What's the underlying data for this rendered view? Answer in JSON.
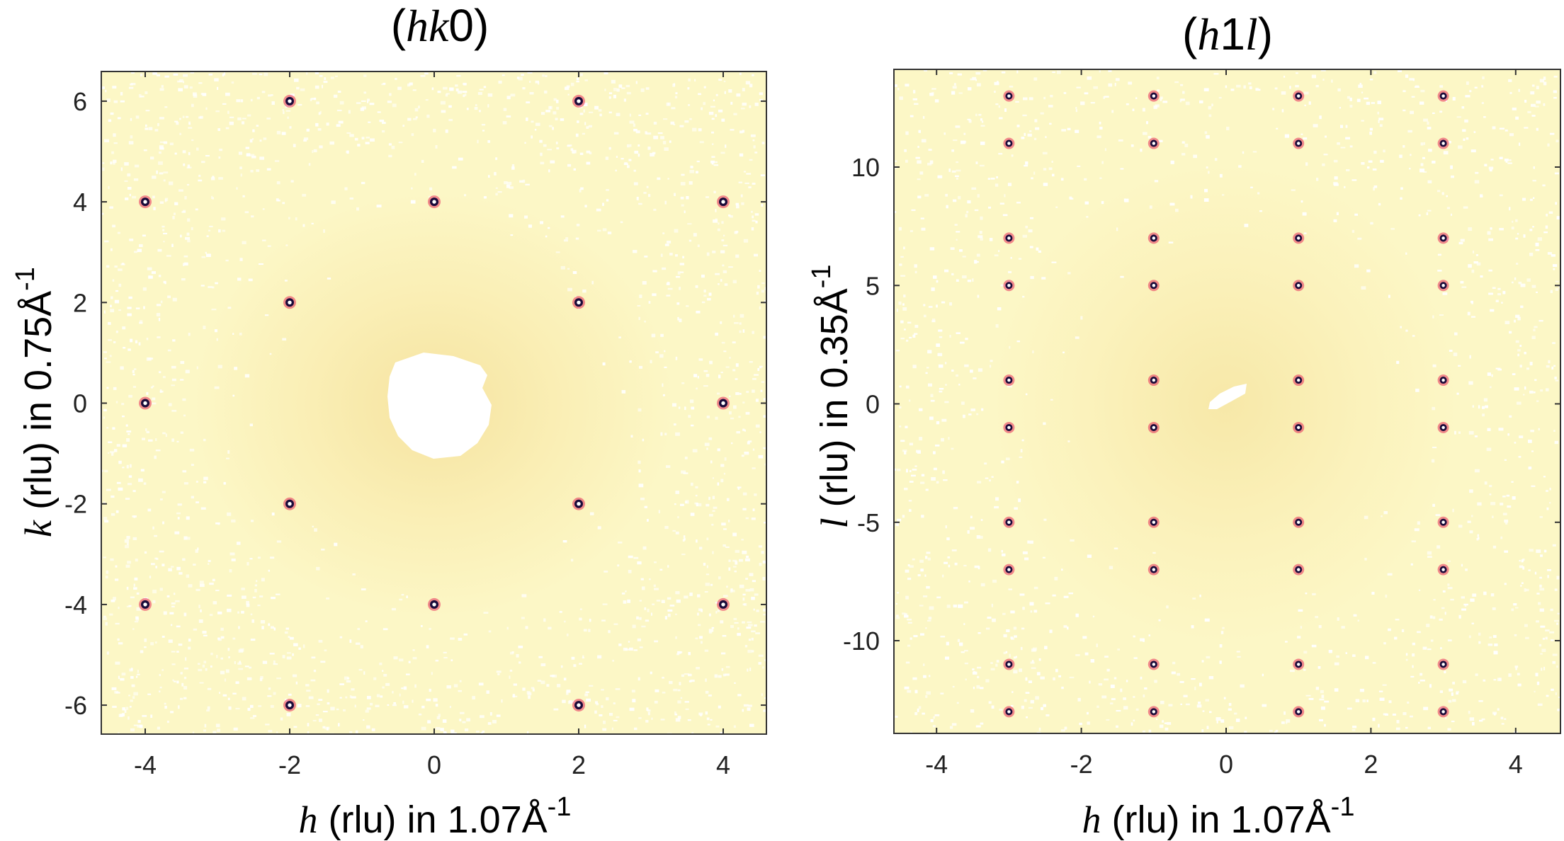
{
  "chart_data": [
    {
      "type": "scatter",
      "title_prefix": "(",
      "title_italic": "hk",
      "title_suffix": "0)",
      "xlabel_var": "h",
      "xlabel_rest": " (rlu) in 1.07Å",
      "xlabel_sup": "-1",
      "ylabel_var": "k",
      "ylabel_rest": " (rlu) in 0.75Å",
      "ylabel_sup": "-1",
      "xlim": [
        -4.6,
        4.6
      ],
      "ylim": [
        -6.6,
        6.6
      ],
      "xticks": [
        "-4",
        "-2",
        "0",
        "2",
        "4"
      ],
      "yticks": [
        "6",
        "4",
        "2",
        "0",
        "-2",
        "-4",
        "-6"
      ],
      "center_blank": true,
      "points": [
        {
          "h": -2,
          "k": 6
        },
        {
          "h": 2,
          "k": 6
        },
        {
          "h": -4,
          "k": 4
        },
        {
          "h": 0,
          "k": 4
        },
        {
          "h": 4,
          "k": 4
        },
        {
          "h": -2,
          "k": 2
        },
        {
          "h": 2,
          "k": 2
        },
        {
          "h": -4,
          "k": 0
        },
        {
          "h": 4,
          "k": 0
        },
        {
          "h": -2,
          "k": -2
        },
        {
          "h": 2,
          "k": -2
        },
        {
          "h": -4,
          "k": -4
        },
        {
          "h": 0,
          "k": -4
        },
        {
          "h": 4,
          "k": -4
        },
        {
          "h": -2,
          "k": -6
        },
        {
          "h": 2,
          "k": -6
        }
      ]
    },
    {
      "type": "scatter",
      "title_prefix": "(",
      "title_italic_a": "h",
      "title_mid": "1",
      "title_italic_b": "l",
      "title_suffix": ")",
      "xlabel_var": "h",
      "xlabel_rest": " (rlu) in 1.07Å",
      "xlabel_sup": "-1",
      "ylabel_var": "l",
      "ylabel_rest": " (rlu) in 0.35Å",
      "ylabel_sup": "-1",
      "xlim": [
        -4.6,
        4.6
      ],
      "ylim": [
        -14,
        14
      ],
      "xticks": [
        "-4",
        "-2",
        "0",
        "2",
        "4"
      ],
      "yticks": [
        "10",
        "5",
        "0",
        "-5",
        "-10"
      ],
      "h_values": [
        -3,
        -1,
        1,
        3
      ],
      "l_values": [
        13,
        11,
        7,
        5,
        1,
        -1,
        -5,
        -7,
        -11,
        -13
      ],
      "colors": {
        "background": "#fbf6c0",
        "halo": "#f5e6a3",
        "spot_ring": "#e8305a",
        "spot_core": "#1a0b3a"
      }
    }
  ]
}
